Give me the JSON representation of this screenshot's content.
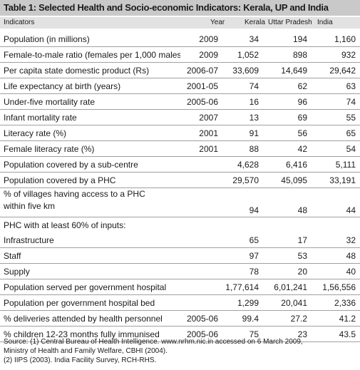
{
  "title": "Table 1: Selected Health and Socio-economic Indicators: Kerala, UP and India",
  "headers": {
    "indicators": "Indicators",
    "year": "Year",
    "kerala": "Kerala",
    "up": "Uttar Pradesh",
    "india": "India"
  },
  "rows": [
    {
      "indicator": "Population (in millions)",
      "year": "2009",
      "kerala": "34",
      "up": "194",
      "india": "1,160"
    },
    {
      "indicator": "Female-to-male ratio (females per 1,000 males)",
      "year": "2009",
      "kerala": "1,052",
      "up": "898",
      "india": "932"
    },
    {
      "indicator": "Per capita state domestic product (Rs)",
      "year": "2006-07",
      "kerala": "33,609",
      "up": "14,649",
      "india": "29,642"
    },
    {
      "indicator": "Life expectancy at birth (years)",
      "year": "2001-05",
      "kerala": "74",
      "up": "62",
      "india": "63"
    },
    {
      "indicator": "Under-five mortality rate",
      "year": "2005-06",
      "kerala": "16",
      "up": "96",
      "india": "74"
    },
    {
      "indicator": "Infant mortality rate",
      "year": "2007",
      "kerala": "13",
      "up": "69",
      "india": "55"
    },
    {
      "indicator": "Literacy rate (%)",
      "year": "2001",
      "kerala": "91",
      "up": "56",
      "india": "65"
    },
    {
      "indicator": "Female literacy rate (%)",
      "year": "2001",
      "kerala": "88",
      "up": "42",
      "india": "54"
    },
    {
      "indicator": "Population covered by a sub-centre",
      "year": "",
      "kerala": "4,628",
      "up": "6,416",
      "india": "5,111"
    },
    {
      "indicator": "Population covered by a PHC",
      "year": "",
      "kerala": "29,570",
      "up": "45,095",
      "india": "33,191"
    },
    {
      "indicator": "% of villages having access to a PHC within five km",
      "year": "",
      "kerala": "94",
      "up": "48",
      "india": "44"
    },
    {
      "indicator": "PHC with at least 60% of inputs:",
      "year": "",
      "kerala": "",
      "up": "",
      "india": ""
    },
    {
      "indicator": "Infrastructure",
      "year": "",
      "kerala": "65",
      "up": "17",
      "india": "32"
    },
    {
      "indicator": "Staff",
      "year": "",
      "kerala": "97",
      "up": "53",
      "india": "48"
    },
    {
      "indicator": "Supply",
      "year": "",
      "kerala": "78",
      "up": "20",
      "india": "40"
    },
    {
      "indicator": "Population served per government hospital",
      "year": "",
      "kerala": "1,77,614",
      "up": "6,01,241",
      "india": "1,56,556"
    },
    {
      "indicator": "Population per government hospital bed",
      "year": "",
      "kerala": "1,299",
      "up": "20,041",
      "india": "2,336"
    },
    {
      "indicator": "% deliveries attended by health personnel",
      "year": "2005-06",
      "kerala": "99.4",
      "up": "27.2",
      "india": "41.2"
    },
    {
      "indicator": "% children 12-23 months fully immunised",
      "year": "2005-06",
      "kerala": "75",
      "up": "23",
      "india": "43.5"
    }
  ],
  "source": [
    "Source: (1) Central Bureau of Health Intelligence. www.nrhm.nic.in accessed on 6 March 2009,",
    "Ministry of Health and Family Welfare, CBHI (2004).",
    "(2) IIPS (2003). India Facility Survey, RCH-RHS."
  ]
}
